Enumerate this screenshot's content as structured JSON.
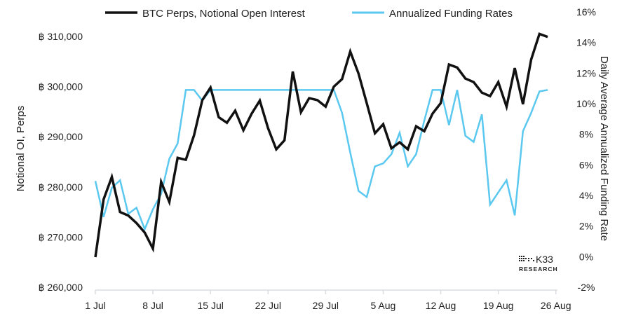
{
  "chart_data": {
    "type": "line",
    "legend_position": "top",
    "grid": false,
    "xlabel": "",
    "x_tick_labels": [
      "1 Jul",
      "8 Jul",
      "15 Jul",
      "22 Jul",
      "29 Jul",
      "5 Aug",
      "12 Aug",
      "19 Aug",
      "26 Aug"
    ],
    "x": [
      "1 Jul",
      "2 Jul",
      "3 Jul",
      "4 Jul",
      "5 Jul",
      "6 Jul",
      "7 Jul",
      "8 Jul",
      "9 Jul",
      "10 Jul",
      "11 Jul",
      "12 Jul",
      "13 Jul",
      "14 Jul",
      "15 Jul",
      "16 Jul",
      "17 Jul",
      "18 Jul",
      "19 Jul",
      "20 Jul",
      "21 Jul",
      "22 Jul",
      "23 Jul",
      "24 Jul",
      "25 Jul",
      "26 Jul",
      "27 Jul",
      "28 Jul",
      "29 Jul",
      "30 Jul",
      "31 Jul",
      "1 Aug",
      "2 Aug",
      "3 Aug",
      "4 Aug",
      "5 Aug",
      "6 Aug",
      "7 Aug",
      "8 Aug",
      "9 Aug",
      "10 Aug",
      "11 Aug",
      "12 Aug",
      "13 Aug",
      "14 Aug",
      "15 Aug",
      "16 Aug",
      "17 Aug",
      "18 Aug",
      "19 Aug",
      "20 Aug",
      "21 Aug",
      "22 Aug",
      "23 Aug",
      "24 Aug",
      "25 Aug"
    ],
    "left_axis": {
      "label": "Notional OI, Perps",
      "ylim": [
        260000,
        310000
      ],
      "tick_labels": [
        "฿ 260,000",
        "฿ 270,000",
        "฿ 280,000",
        "฿ 290,000",
        "฿ 300,000",
        "฿ 310,000"
      ],
      "tick_values": [
        260000,
        270000,
        280000,
        290000,
        300000,
        310000
      ]
    },
    "right_axis": {
      "label": "Daily Average Annualized Funding Rate",
      "ylim": [
        -2,
        16
      ],
      "tick_labels": [
        "-2%",
        "0%",
        "2%",
        "4%",
        "6%",
        "8%",
        "10%",
        "12%",
        "14%",
        "16%"
      ],
      "tick_values": [
        -2,
        0,
        2,
        4,
        6,
        8,
        10,
        12,
        14,
        16
      ]
    },
    "series": [
      {
        "name": "BTC Perps, Notional Open Interest",
        "axis": "left",
        "color": "#111111",
        "values": [
          266000,
          277500,
          282000,
          275000,
          274300,
          272800,
          270900,
          267700,
          281000,
          277000,
          285800,
          285400,
          290300,
          297300,
          299800,
          293900,
          292800,
          295200,
          291300,
          294600,
          297200,
          291700,
          287500,
          289300,
          303000,
          294900,
          297700,
          297300,
          296000,
          300000,
          301500,
          307000,
          302600,
          296700,
          290700,
          292500,
          287700,
          288900,
          287500,
          292100,
          291100,
          294600,
          296700,
          304400,
          303800,
          301600,
          300900,
          298800,
          298100,
          300900,
          296000,
          303700,
          296500,
          305400,
          310500,
          309900
        ]
      },
      {
        "name": "Annualized Funding Rates",
        "axis": "right",
        "color": "#5BC8F0",
        "values": [
          4.95,
          2.6,
          4.5,
          5.0,
          2.8,
          3.2,
          1.8,
          3.1,
          4.1,
          6.4,
          7.4,
          10.9,
          10.9,
          10.2,
          10.9,
          10.9,
          10.9,
          10.9,
          10.9,
          10.9,
          10.9,
          10.9,
          10.9,
          10.9,
          10.9,
          10.9,
          10.9,
          10.9,
          10.9,
          10.9,
          9.4,
          6.8,
          4.3,
          3.9,
          5.9,
          6.1,
          6.7,
          8.1,
          5.9,
          6.7,
          8.9,
          10.9,
          10.9,
          8.6,
          10.9,
          7.9,
          7.5,
          9.3,
          3.4,
          4.2,
          5.0,
          2.7,
          8.2,
          9.4,
          10.8,
          10.9
        ]
      }
    ]
  },
  "watermark": {
    "brand": "K33",
    "sub": "RESEARCH"
  }
}
